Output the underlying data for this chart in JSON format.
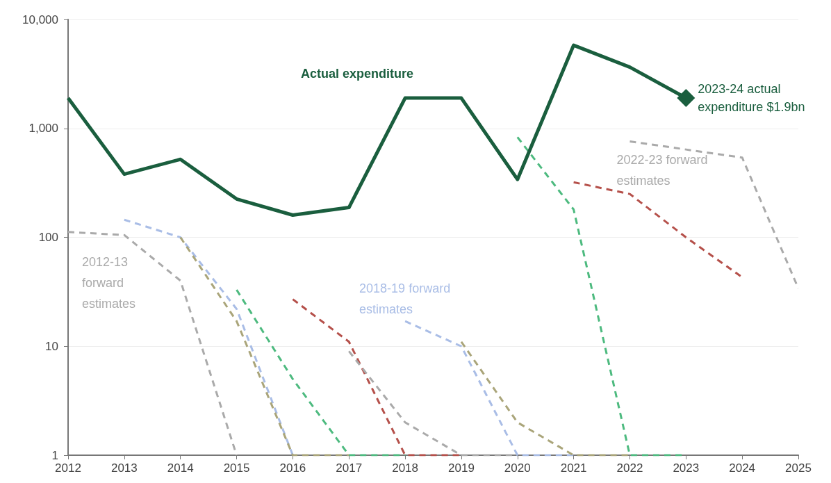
{
  "chart_data": {
    "type": "line",
    "log": "y",
    "grid": "y",
    "legend": false,
    "xlim": [
      2012,
      2025
    ],
    "xticks": [
      2012,
      2013,
      2014,
      2015,
      2016,
      2017,
      2018,
      2019,
      2020,
      2021,
      2022,
      2023,
      2024,
      2025
    ],
    "ylim": [
      1,
      10000
    ],
    "yticks": [
      1,
      10,
      100,
      {
        "value": 1000,
        "label": "1,000"
      },
      {
        "value": 10000,
        "label": "10,000"
      }
    ],
    "series": [
      {
        "name": "Actual expenditure",
        "color": "#1a5e3e",
        "line_style": "solid",
        "x": [
          2012,
          2013,
          2014,
          2015,
          2016,
          2017,
          2018,
          2019,
          2020,
          2021,
          2022,
          2023
        ],
        "values": [
          1900,
          380,
          520,
          225,
          160,
          188,
          1900,
          1900,
          340,
          5800,
          3650,
          1900
        ]
      },
      {
        "name": "2012-13 forward estimates",
        "color": "#aaaaaa",
        "line_style": "dashed",
        "x": [
          2012,
          2013,
          2014,
          2015
        ],
        "values": [
          112,
          105,
          40,
          1
        ]
      },
      {
        "color": "#a9bde6",
        "line_style": "dashed",
        "x": [
          2013,
          2014,
          2015,
          2016
        ],
        "values": [
          145,
          100,
          22,
          1
        ]
      },
      {
        "color": "#aaa57a",
        "line_style": "dashed",
        "x": [
          2014,
          2015,
          2016,
          2017
        ],
        "values": [
          100,
          17,
          1,
          1
        ]
      },
      {
        "color": "#4dba7f",
        "line_style": "dashed",
        "x": [
          2015,
          2016,
          2017,
          2018
        ],
        "values": [
          33,
          5,
          1,
          1
        ]
      },
      {
        "color": "#b5504a",
        "line_style": "dashed",
        "x": [
          2016,
          2017,
          2018,
          2019
        ],
        "values": [
          27,
          11,
          1,
          1
        ]
      },
      {
        "color": "#aaaaaa",
        "line_style": "dashed",
        "x": [
          2017,
          2018,
          2019,
          2020
        ],
        "values": [
          9,
          2,
          1,
          1
        ]
      },
      {
        "name": "2018-19 forward estimates",
        "color": "#a9bde6",
        "line_style": "dashed",
        "x": [
          2018,
          2019,
          2020,
          2021
        ],
        "values": [
          17,
          10,
          1,
          1
        ]
      },
      {
        "color": "#aaa57a",
        "line_style": "dashed",
        "x": [
          2019,
          2020,
          2021,
          2022
        ],
        "values": [
          11,
          2,
          1,
          1
        ]
      },
      {
        "color": "#4dba7f",
        "line_style": "dashed",
        "x": [
          2020,
          2021,
          2022,
          2023
        ],
        "values": [
          830,
          180,
          1,
          1
        ]
      },
      {
        "color": "#b5504a",
        "line_style": "dashed",
        "x": [
          2021,
          2022,
          2023,
          2024
        ],
        "values": [
          320,
          250,
          100,
          43
        ]
      },
      {
        "name": "2022-23 forward estimates",
        "color": "#aaaaaa",
        "line_style": "dashed",
        "x": [
          2022,
          2023,
          2024,
          2025
        ],
        "values": [
          760,
          640,
          540,
          34
        ]
      }
    ],
    "annotations": [
      {
        "text": "2023-24 actual expenditure $1.9bn",
        "x": 2023,
        "y": 1900
      }
    ]
  }
}
